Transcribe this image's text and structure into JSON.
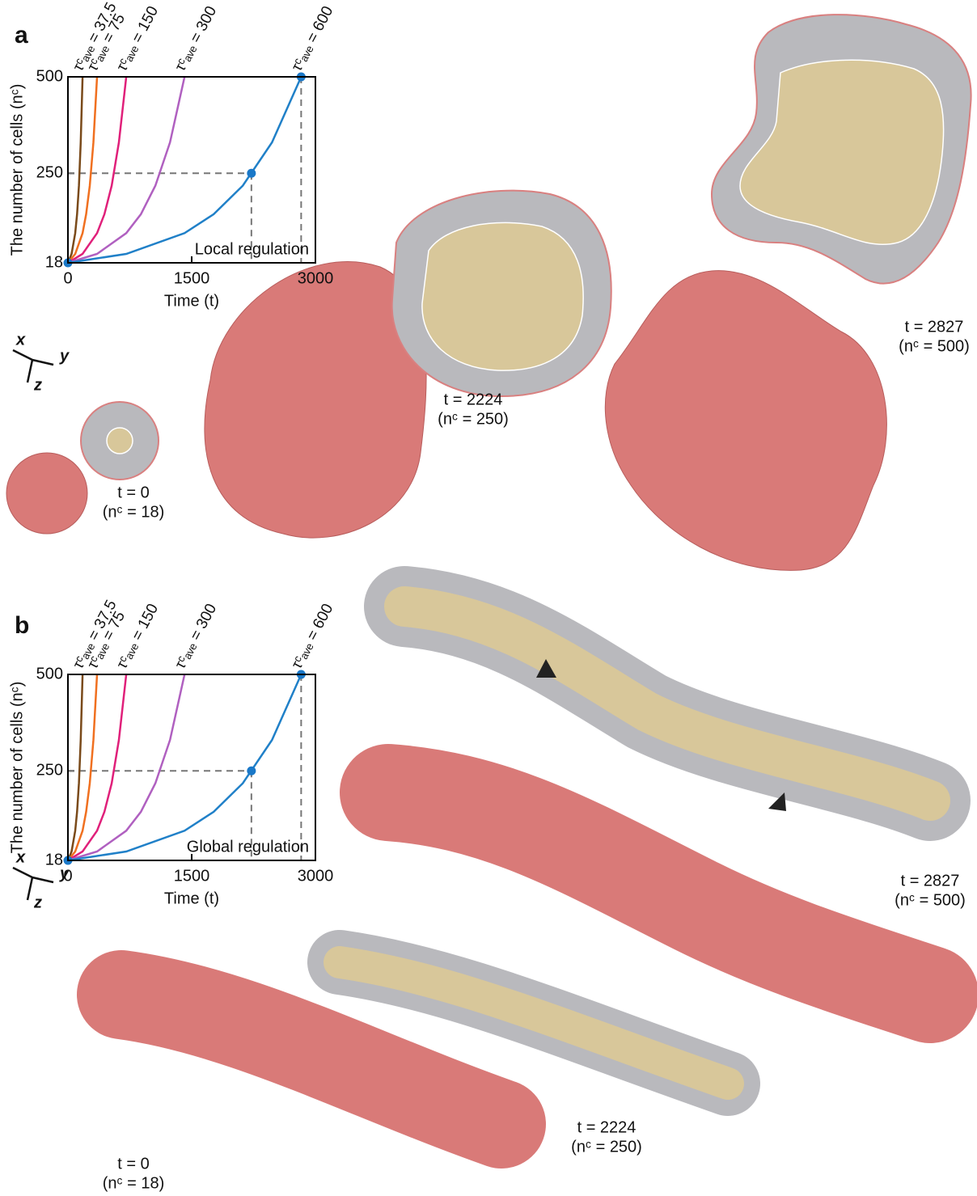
{
  "chart_data": [
    {
      "type": "line",
      "panel": "a",
      "ylabel": "The number of cells (nᶜ)",
      "xlabel": "Time (t)",
      "annotation": "Local regulation",
      "annotation_color": "#e8303a",
      "xlim": [
        0,
        3000
      ],
      "xticks": [
        0,
        1500,
        3000
      ],
      "ylim": [
        18,
        500
      ],
      "yticks": [
        18,
        250,
        500
      ],
      "series": [
        {
          "name": "τᶜₐᵥₑ = 37.5",
          "color": "#7a4a1a",
          "x": [
            0,
            44,
            88,
            111,
            133,
            155,
            177
          ],
          "values": [
            18,
            41,
            95,
            144,
            218,
            330,
            500
          ]
        },
        {
          "name": "τᶜₐᵥₑ = 75",
          "color": "#f07020",
          "x": [
            0,
            88,
            177,
            221,
            265,
            309,
            353
          ],
          "values": [
            18,
            41,
            95,
            144,
            218,
            330,
            500
          ]
        },
        {
          "name": "τᶜₐᵥₑ = 150",
          "color": "#e0207a",
          "x": [
            0,
            177,
            353,
            442,
            530,
            618,
            707
          ],
          "values": [
            18,
            41,
            95,
            144,
            218,
            330,
            500
          ]
        },
        {
          "name": "τᶜₐᵥₑ = 300",
          "color": "#b060c0",
          "x": [
            0,
            353,
            707,
            884,
            1060,
            1237,
            1414
          ],
          "values": [
            18,
            41,
            95,
            144,
            218,
            330,
            500
          ]
        },
        {
          "name": "τᶜₐᵥₑ = 600",
          "color": "#2080c8",
          "x": [
            0,
            707,
            1414,
            1767,
            2120,
            2474,
            2827
          ],
          "values": [
            18,
            41,
            95,
            144,
            218,
            330,
            500
          ]
        }
      ],
      "highlight_points": {
        "color": "#1a78c8",
        "x": [
          0,
          2224,
          2827
        ],
        "values": [
          18,
          250,
          500
        ]
      },
      "axes_labels": [
        "x",
        "y",
        "z"
      ],
      "snapshot_labels": [
        [
          "t = 0",
          "(nᶜ = 18)"
        ],
        [
          "t = 2224",
          "(nᶜ = 250)"
        ],
        [
          "t = 2827",
          "(nᶜ = 500)"
        ]
      ]
    },
    {
      "type": "line",
      "panel": "b",
      "ylabel": "The number of cells (nᶜ)",
      "xlabel": "Time (t)",
      "annotation": "Global regulation",
      "annotation_color": "#30b040",
      "xlim": [
        0,
        3000
      ],
      "xticks": [
        0,
        1500,
        3000
      ],
      "ylim": [
        18,
        500
      ],
      "yticks": [
        18,
        250,
        500
      ],
      "series": [
        {
          "name": "τᶜₐᵥₑ = 37.5",
          "color": "#7a4a1a",
          "x": [
            0,
            44,
            88,
            111,
            133,
            155,
            177
          ],
          "values": [
            18,
            41,
            95,
            144,
            218,
            330,
            500
          ]
        },
        {
          "name": "τᶜₐᵥₑ = 75",
          "color": "#f07020",
          "x": [
            0,
            88,
            177,
            221,
            265,
            309,
            353
          ],
          "values": [
            18,
            41,
            95,
            144,
            218,
            330,
            500
          ]
        },
        {
          "name": "τᶜₐᵥₑ = 150",
          "color": "#e0207a",
          "x": [
            0,
            177,
            353,
            442,
            530,
            618,
            707
          ],
          "values": [
            18,
            41,
            95,
            144,
            218,
            330,
            500
          ]
        },
        {
          "name": "τᶜₐᵥₑ = 300",
          "color": "#b060c0",
          "x": [
            0,
            353,
            707,
            884,
            1060,
            1237,
            1414
          ],
          "values": [
            18,
            41,
            95,
            144,
            218,
            330,
            500
          ]
        },
        {
          "name": "τᶜₐᵥₑ = 600",
          "color": "#2080c8",
          "x": [
            0,
            707,
            1414,
            1767,
            2120,
            2474,
            2827
          ],
          "values": [
            18,
            41,
            95,
            144,
            218,
            330,
            500
          ]
        }
      ],
      "highlight_points": {
        "color": "#1a78c8",
        "x": [
          0,
          2224,
          2827
        ],
        "values": [
          18,
          250,
          500
        ]
      },
      "axes_labels": [
        "x",
        "y",
        "z"
      ],
      "snapshot_labels": [
        [
          "t = 0",
          "(nᶜ = 18)"
        ],
        [
          "t = 2224",
          "(nᶜ = 250)"
        ],
        [
          "t = 2827",
          "(nᶜ = 500)"
        ]
      ]
    }
  ]
}
